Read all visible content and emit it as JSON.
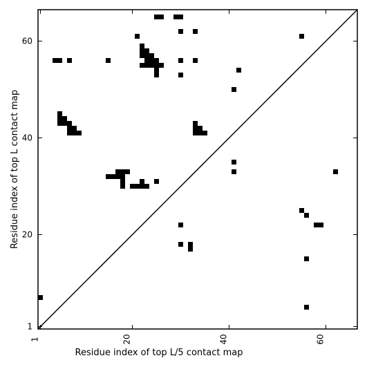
{
  "chart_data": {
    "type": "heatmap",
    "title": "",
    "xlabel": "Residue index of top L/5 contact map",
    "ylabel": "Residue index of top L contact map",
    "xlim": [
      0.5,
      66.5
    ],
    "ylim": [
      0.5,
      66.5
    ],
    "xticks": [
      {
        "value": 1,
        "label": "1"
      },
      {
        "value": 20,
        "label": "20"
      },
      {
        "value": 40,
        "label": "40"
      },
      {
        "value": 60,
        "label": "60"
      }
    ],
    "yticks": [
      {
        "value": 1,
        "label": "1"
      },
      {
        "value": 20,
        "label": "20"
      },
      {
        "value": 40,
        "label": "40"
      },
      {
        "value": 60,
        "label": "60"
      }
    ],
    "diagonal": true,
    "cell_color": "#000000",
    "grid": false,
    "cells": [
      [
        1,
        7
      ],
      [
        56,
        5
      ],
      [
        56,
        15
      ],
      [
        30,
        18
      ],
      [
        32,
        18
      ],
      [
        32,
        17
      ],
      [
        30,
        22
      ],
      [
        55,
        25
      ],
      [
        56,
        24
      ],
      [
        58,
        22
      ],
      [
        59,
        22
      ],
      [
        15,
        32
      ],
      [
        16,
        32
      ],
      [
        17,
        32
      ],
      [
        17,
        33
      ],
      [
        18,
        33
      ],
      [
        19,
        33
      ],
      [
        18,
        32
      ],
      [
        18,
        31
      ],
      [
        18,
        30
      ],
      [
        20,
        30
      ],
      [
        21,
        30
      ],
      [
        22,
        30
      ],
      [
        23,
        30
      ],
      [
        22,
        31
      ],
      [
        25,
        31
      ],
      [
        41,
        35
      ],
      [
        41,
        33
      ],
      [
        62,
        33
      ],
      [
        5,
        45
      ],
      [
        5,
        44
      ],
      [
        6,
        44
      ],
      [
        5,
        43
      ],
      [
        6,
        43
      ],
      [
        7,
        43
      ],
      [
        7,
        42
      ],
      [
        8,
        42
      ],
      [
        7,
        41
      ],
      [
        8,
        41
      ],
      [
        9,
        41
      ],
      [
        33,
        43
      ],
      [
        33,
        42
      ],
      [
        34,
        42
      ],
      [
        33,
        41
      ],
      [
        34,
        41
      ],
      [
        35,
        41
      ],
      [
        41,
        50
      ],
      [
        42,
        54
      ],
      [
        4,
        56
      ],
      [
        5,
        56
      ],
      [
        7,
        56
      ],
      [
        15,
        56
      ],
      [
        22,
        59
      ],
      [
        22,
        58
      ],
      [
        23,
        58
      ],
      [
        22,
        57
      ],
      [
        23,
        57
      ],
      [
        24,
        57
      ],
      [
        23,
        56
      ],
      [
        24,
        56
      ],
      [
        25,
        56
      ],
      [
        22,
        55
      ],
      [
        23,
        55
      ],
      [
        24,
        55
      ],
      [
        25,
        55
      ],
      [
        26,
        55
      ],
      [
        25,
        54
      ],
      [
        25,
        53
      ],
      [
        30,
        56
      ],
      [
        33,
        56
      ],
      [
        30,
        53
      ],
      [
        21,
        61
      ],
      [
        30,
        62
      ],
      [
        33,
        62
      ],
      [
        55,
        61
      ],
      [
        25,
        65
      ],
      [
        26,
        65
      ],
      [
        29,
        65
      ],
      [
        30,
        65
      ]
    ]
  }
}
